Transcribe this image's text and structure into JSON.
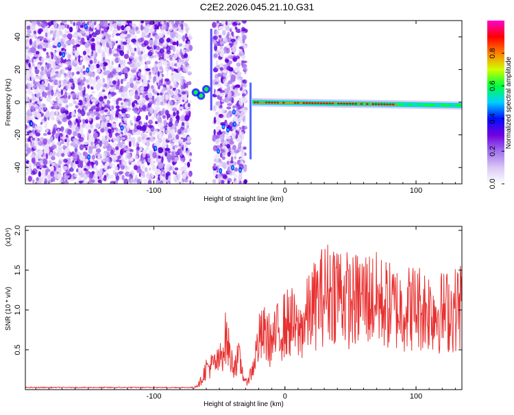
{
  "title": "C2E2.2026.045.21.10.G31",
  "chart_data": [
    {
      "type": "heatmap",
      "xlabel": "Height of straight line (km)",
      "ylabel": "Frequency (Hz)",
      "xlim": [
        -198,
        135
      ],
      "ylim": [
        -50,
        50
      ],
      "xticks": [
        -100,
        0,
        100
      ],
      "xtick_labels": [
        "-100",
        "0",
        "100"
      ],
      "yticks": [
        -40,
        -20,
        0,
        20,
        40
      ],
      "ytick_labels": [
        "-40",
        "-20",
        "0",
        "20",
        "40"
      ],
      "noise_regions": [
        {
          "x_start": -198,
          "x_end": -72
        },
        {
          "x_start": -54,
          "x_end": -30
        }
      ],
      "signal_line": {
        "x_start": -25,
        "x_end": 135,
        "freq_start": 0,
        "freq_end": -2
      },
      "colorbar": {
        "label": "Normalized spectral amplitude",
        "range": [
          0,
          1
        ],
        "ticks": [
          0.0,
          0.2,
          0.4,
          0.6,
          0.8
        ],
        "tick_labels": [
          "0.0",
          "0.2",
          "0.4",
          "0.6",
          "0.8"
        ],
        "colors": [
          "#ffffff",
          "#d9c8f5",
          "#a070ee",
          "#7000e0",
          "#0010ff",
          "#00d0ff",
          "#00ff40",
          "#d0ff00",
          "#ff8000",
          "#ff0000",
          "#ff00d0"
        ]
      },
      "grid": false
    },
    {
      "type": "line",
      "xlabel": "Height of straight line (km)",
      "ylabel": "SNR (10 * v/v)",
      "scale_label": "(x10⁴)",
      "xlim": [
        -198,
        135
      ],
      "ylim": [
        0,
        2.05
      ],
      "xticks": [
        -100,
        0,
        100
      ],
      "xtick_labels": [
        "-100",
        "0",
        "100"
      ],
      "yticks": [
        0.5,
        1.0,
        1.5,
        2.0
      ],
      "ytick_labels": [
        "0.5",
        "1.0",
        "1.5",
        "2.0"
      ],
      "series": [
        {
          "color": "#e83030",
          "envelope_x": [
            -198,
            -70,
            -65,
            -60,
            -50,
            -45,
            -40,
            -35,
            -30,
            -25,
            -20,
            -15,
            -10,
            -5,
            0,
            5,
            10,
            20,
            30,
            40,
            50,
            60,
            70,
            80,
            90,
            100,
            110,
            120,
            130,
            135
          ],
          "envelope_y": [
            0.03,
            0.03,
            0.1,
            0.35,
            0.45,
            0.85,
            0.4,
            0.5,
            0.1,
            0.3,
            0.8,
            0.9,
            0.75,
            0.95,
            1.05,
            1.1,
            0.9,
            1.3,
            1.55,
            1.65,
            1.4,
            1.5,
            1.45,
            1.35,
            1.3,
            1.35,
            1.3,
            1.25,
            1.3,
            1.4
          ]
        }
      ],
      "grid": false
    }
  ]
}
